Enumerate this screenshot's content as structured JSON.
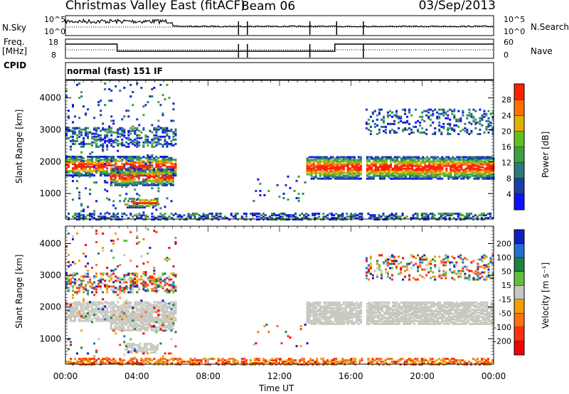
{
  "header": {
    "title": "Christmas Valley East (fitACF)",
    "beam": "Beam 06",
    "date": "03/Sep/2013"
  },
  "strips": {
    "nsky": {
      "label": "N.Sky",
      "ticks": [
        "10^5",
        "10^0"
      ],
      "right_label": "N.Search",
      "right_ticks": [
        "10^5",
        "10^0"
      ]
    },
    "freq": {
      "label_line1": "Freq.",
      "label_line2": "[MHz]",
      "ticks": [
        "18",
        "8"
      ],
      "right_label": "Nave",
      "right_ticks": [
        "60",
        "0"
      ]
    },
    "cpid": {
      "label": "CPID",
      "value": "normal (fast) 151 IF"
    }
  },
  "chart_data": [
    {
      "type": "heatmap",
      "name": "power",
      "ylabel": "Slant Range [km]",
      "yticks": [
        1000,
        2000,
        3000,
        4000
      ],
      "ylim": [
        200,
        4550
      ],
      "xlim_hours": [
        0,
        24
      ],
      "colorbar": {
        "label": "Power [dB]",
        "ticks": [
          4,
          8,
          12,
          16,
          20,
          24,
          28
        ],
        "colors": [
          "#1010ff",
          "#1a3fa0",
          "#2a7a7a",
          "#3fa040",
          "#60c020",
          "#e0b000",
          "#ff7000",
          "#ff2000"
        ]
      }
    },
    {
      "type": "heatmap",
      "name": "velocity",
      "ylabel": "Slant Range [km]",
      "yticks": [
        1000,
        2000,
        3000,
        4000
      ],
      "ylim": [
        200,
        4550
      ],
      "xlim_hours": [
        0,
        24
      ],
      "colorbar": {
        "label": "Velocity [m s⁻¹]",
        "ticks": [
          200,
          100,
          50,
          15,
          -15,
          -50,
          -100,
          -200
        ],
        "colors": [
          "#1020c0",
          "#2070d0",
          "#208040",
          "#60c040",
          "#c8c8c0",
          "#f0a000",
          "#ff7010",
          "#ff3010",
          "#f00000"
        ]
      }
    }
  ],
  "x_axis": {
    "label": "Time UT",
    "ticks": [
      "00:00",
      "04:00",
      "08:00",
      "12:00",
      "16:00",
      "20:00",
      "00:00"
    ]
  }
}
